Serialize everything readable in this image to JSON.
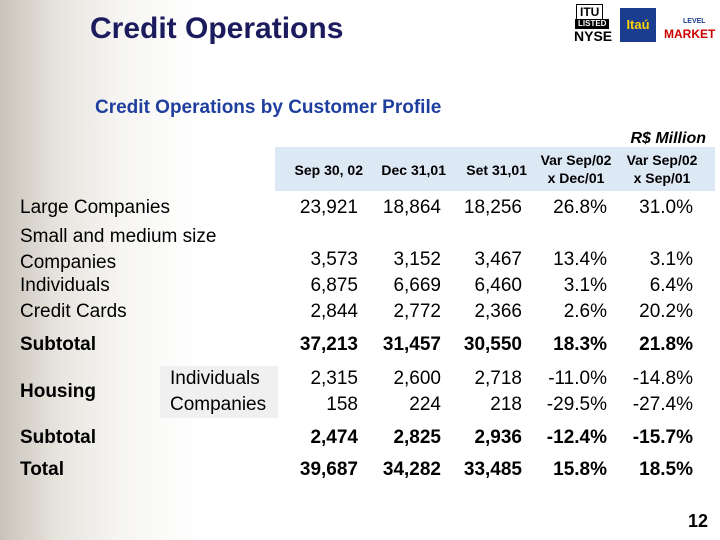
{
  "logos": {
    "itu": "ITU",
    "listed": "LISTED",
    "nyse": "NYSE",
    "itau": "Itaú",
    "level": "LEVEL",
    "market": "MARKET"
  },
  "title": "Credit Operations",
  "subtitle": "Credit Operations by Customer Profile",
  "unit": "R$ Million",
  "table": {
    "columns": [
      "Sep 30, 02",
      "Dec 31,01",
      "Set 31,01",
      "Var Sep/02 x Dec/01",
      "Var Sep/02 x Sep/01"
    ],
    "segments": [
      {
        "label": "Large Companies",
        "values": [
          "23,921",
          "18,864",
          "18,256",
          "26.8%",
          "31.0%"
        ]
      },
      {
        "label": "Small and medium size Companies",
        "values": [
          "3,573",
          "3,152",
          "3,467",
          "13.4%",
          "3.1%"
        ]
      },
      {
        "label": "Individuals",
        "values": [
          "6,875",
          "6,669",
          "6,460",
          "3.1%",
          "6.4%"
        ]
      },
      {
        "label": "Credit Cards",
        "values": [
          "2,844",
          "2,772",
          "2,366",
          "2.6%",
          "20.2%"
        ]
      }
    ],
    "subtotal": {
      "label": "Subtotal",
      "values": [
        "37,213",
        "31,457",
        "30,550",
        "18.3%",
        "21.8%"
      ]
    },
    "housing": {
      "label": "Housing",
      "rows": [
        {
          "label": "Individuals",
          "values": [
            "2,315",
            "2,600",
            "2,718",
            "-11.0%",
            "-14.8%"
          ]
        },
        {
          "label": "Companies",
          "values": [
            "158",
            "224",
            "218",
            "-29.5%",
            "-27.4%"
          ]
        }
      ]
    },
    "housing_subtotal": {
      "label": "Subtotal",
      "values": [
        "2,474",
        "2,825",
        "2,936",
        "-12.4%",
        "-15.7%"
      ]
    },
    "total": {
      "label": "Total",
      "values": [
        "39,687",
        "34,282",
        "33,485",
        "15.8%",
        "18.5%"
      ]
    }
  },
  "page_number": "12"
}
